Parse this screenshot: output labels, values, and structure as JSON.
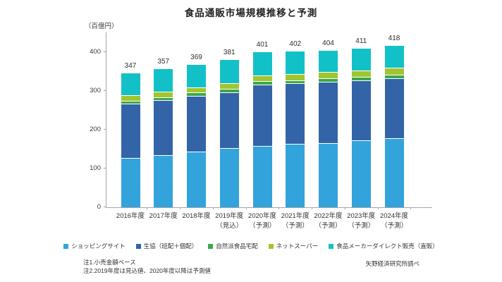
{
  "title": "食品通販市場規模推移と予測",
  "y_unit": "（百億円）",
  "notes": [
    "注1.小売金額ベース",
    "注2.2019年度は見込値、2020年度以降は予測値"
  ],
  "source": "矢野経済研究所調べ",
  "colors": {
    "shopping_site": "#33a3dc",
    "coop": "#3364a8",
    "natural_food": "#3ea74a",
    "net_super": "#a2c52f",
    "maker_direct": "#12c1c7",
    "axis": "#a6a6a6",
    "text": "#333333"
  },
  "chart_data": {
    "type": "bar",
    "stacked": true,
    "title": "食品通販市場規模推移と予測",
    "ylabel": "（百億円）",
    "xlabel": "",
    "ylim": [
      0,
      450
    ],
    "yticks": [
      0,
      100,
      200,
      300,
      400
    ],
    "grid": false,
    "legend_position": "bottom",
    "categories": [
      "2016年度",
      "2017年度",
      "2018年度",
      "2019年度",
      "2020年度",
      "2021年度",
      "2022年度",
      "2023年度",
      "2024年度"
    ],
    "category_sublabels": [
      "",
      "",
      "",
      "（見込）",
      "（予測）",
      "（予測）",
      "（予測）",
      "（予測）",
      "（予測）"
    ],
    "totals": [
      347,
      357,
      369,
      381,
      401,
      402,
      404,
      411,
      418
    ],
    "series": [
      {
        "name": "ショッピングサイト",
        "color": "#33a3dc",
        "values": [
          127,
          135,
          144,
          152,
          157,
          163,
          166,
          173,
          177
        ]
      },
      {
        "name": "生協（班配＋個配）",
        "color": "#3364a8",
        "values": [
          139,
          141,
          143,
          144,
          159,
          156,
          157,
          154,
          156
        ]
      },
      {
        "name": "自然派食品宅配",
        "color": "#3ea74a",
        "values": [
          8,
          8,
          8,
          8,
          8,
          8,
          9,
          9,
          9
        ]
      },
      {
        "name": "ネットスーパー",
        "color": "#a2c52f",
        "values": [
          14,
          14,
          14,
          15,
          16,
          16,
          16,
          17,
          17
        ]
      },
      {
        "name": "食品メーカーダイレクト販売（直販）",
        "color": "#12c1c7",
        "values": [
          59,
          59,
          60,
          62,
          61,
          59,
          56,
          58,
          59
        ]
      }
    ]
  }
}
